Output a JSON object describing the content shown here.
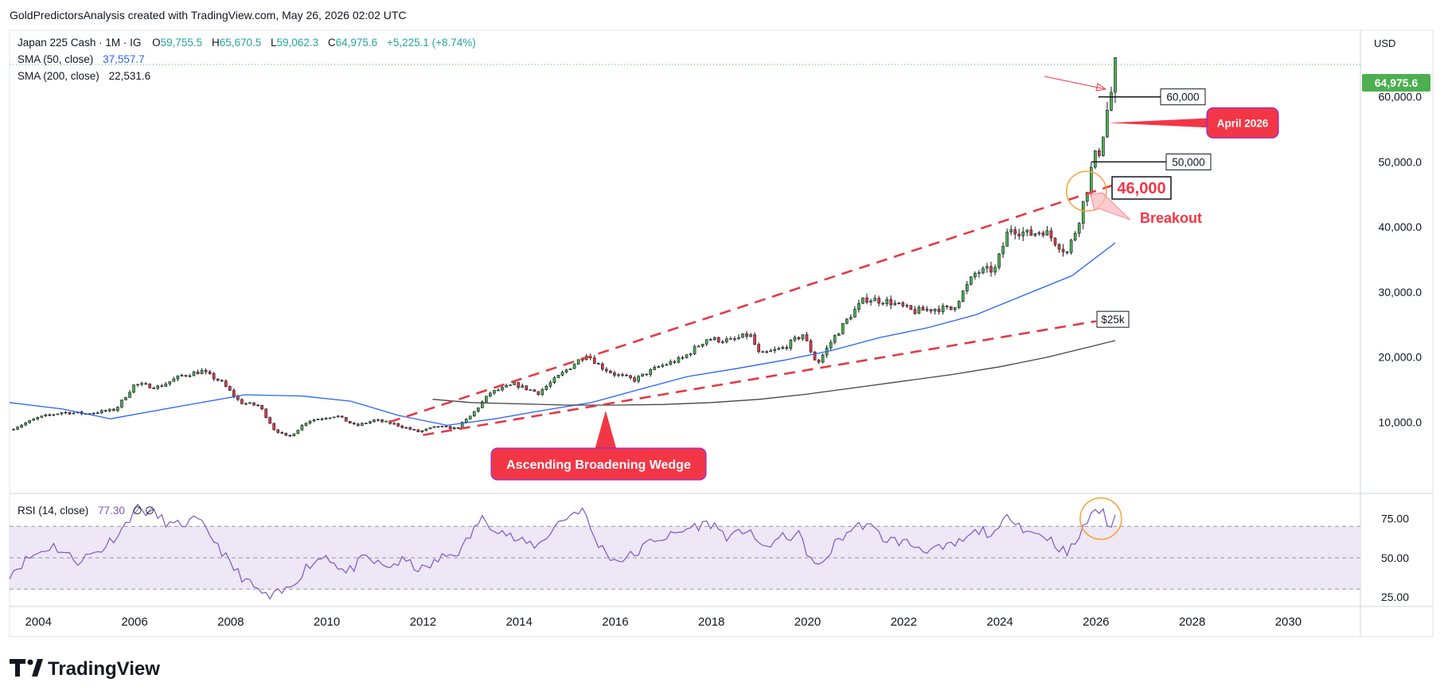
{
  "header": {
    "attribution": "GoldPredictorsAnalysis created with TradingView.com, May 26, 2026 02:02 UTC"
  },
  "legend": {
    "symbol": "Japan 225 Cash · 1M · IG",
    "open_label": "O",
    "open": "59,755.5",
    "high_label": "H",
    "high": "65,670.5",
    "low_label": "L",
    "low": "59,062.3",
    "close_label": "C",
    "close": "64,975.6",
    "change": "+5,225.1 (+8.74%)",
    "sma50_label": "SMA (50, close)",
    "sma50_value": "37,557.7",
    "sma200_label": "SMA (200, close)",
    "sma200_value": "22,531.6",
    "rsi_label": "RSI (14, close)",
    "rsi_value": "77.30",
    "rsi_extra": "∅ ∅"
  },
  "currency": "USD",
  "price_tag": "64,975.6",
  "annotations": {
    "level_60k": "60,000",
    "april": "April 2026",
    "level_50k": "50,000",
    "level_46k": "46,000",
    "breakout": "Breakout",
    "level_25k": "$25k",
    "pattern": "Ascending Broadening Wedge"
  },
  "branding": {
    "logo_text": "TradingView"
  },
  "colors": {
    "bull": "#26a69a",
    "bull_fill": "#4caf50",
    "bear": "#e53945",
    "sma50": "#2962ff",
    "sma200": "#444444",
    "rsi": "#7e57c2",
    "rsi_band": "#ede7f6",
    "wedge": "#e53945",
    "badge": "#f23645",
    "price_tag": "#4caf50",
    "circle": "#f7a134"
  },
  "chart_data": {
    "type": "candlestick",
    "timeframe": "1M",
    "ylim": [
      0,
      70000
    ],
    "yticks": [
      10000,
      20000,
      30000,
      40000,
      50000,
      60000
    ],
    "ytick_labels": [
      "10,000.0",
      "20,000.0",
      "30,000.0",
      "40,000.0",
      "50,000.0",
      "60,000.0"
    ],
    "xlim": [
      2003.4,
      2031.5
    ],
    "xticks": [
      2004,
      2006,
      2008,
      2010,
      2012,
      2014,
      2016,
      2018,
      2020,
      2022,
      2024,
      2026,
      2028,
      2030
    ],
    "price_anchors": [
      [
        2003.4,
        8800
      ],
      [
        2004.0,
        10700
      ],
      [
        2004.5,
        11500
      ],
      [
        2005.0,
        11300
      ],
      [
        2005.6,
        11900
      ],
      [
        2006.0,
        15800
      ],
      [
        2006.5,
        15400
      ],
      [
        2007.0,
        17200
      ],
      [
        2007.4,
        17800
      ],
      [
        2007.8,
        16200
      ],
      [
        2008.2,
        13000
      ],
      [
        2008.6,
        12500
      ],
      [
        2008.9,
        8900
      ],
      [
        2009.2,
        7600
      ],
      [
        2009.6,
        10200
      ],
      [
        2010.2,
        11000
      ],
      [
        2010.6,
        9400
      ],
      [
        2011.0,
        10300
      ],
      [
        2011.4,
        9700
      ],
      [
        2011.9,
        8500
      ],
      [
        2012.3,
        9300
      ],
      [
        2012.7,
        9000
      ],
      [
        2013.0,
        11000
      ],
      [
        2013.4,
        14500
      ],
      [
        2013.9,
        15800
      ],
      [
        2014.4,
        14500
      ],
      [
        2014.9,
        17500
      ],
      [
        2015.4,
        20500
      ],
      [
        2015.7,
        18500
      ],
      [
        2016.0,
        17300
      ],
      [
        2016.4,
        16500
      ],
      [
        2016.9,
        18500
      ],
      [
        2017.4,
        19800
      ],
      [
        2017.9,
        22800
      ],
      [
        2018.4,
        22500
      ],
      [
        2018.8,
        23500
      ],
      [
        2019.0,
        20300
      ],
      [
        2019.5,
        21400
      ],
      [
        2019.9,
        23500
      ],
      [
        2020.2,
        18900
      ],
      [
        2020.5,
        22500
      ],
      [
        2020.9,
        26500
      ],
      [
        2021.2,
        29000
      ],
      [
        2021.7,
        28500
      ],
      [
        2022.2,
        27000
      ],
      [
        2022.7,
        27500
      ],
      [
        2023.0,
        27300
      ],
      [
        2023.5,
        33000
      ],
      [
        2023.9,
        33500
      ],
      [
        2024.2,
        40000
      ],
      [
        2024.6,
        38800
      ],
      [
        2024.9,
        39500
      ],
      [
        2025.2,
        37500
      ],
      [
        2025.4,
        36000
      ],
      [
        2025.6,
        40000
      ],
      [
        2025.8,
        45500
      ],
      [
        2025.95,
        50500
      ],
      [
        2026.1,
        52000
      ],
      [
        2026.2,
        57000
      ],
      [
        2026.3,
        59800
      ],
      [
        2026.4,
        64975.6
      ]
    ],
    "sma50": [
      [
        2003.4,
        13000
      ],
      [
        2004.5,
        12000
      ],
      [
        2005.5,
        10500
      ],
      [
        2007.0,
        12500
      ],
      [
        2008.3,
        14200
      ],
      [
        2009.5,
        14000
      ],
      [
        2010.5,
        13200
      ],
      [
        2011.5,
        11000
      ],
      [
        2012.5,
        9500
      ],
      [
        2013.5,
        10500
      ],
      [
        2014.5,
        11800
      ],
      [
        2015.5,
        13000
      ],
      [
        2016.5,
        15000
      ],
      [
        2017.5,
        17000
      ],
      [
        2018.5,
        18200
      ],
      [
        2019.5,
        19500
      ],
      [
        2020.5,
        21000
      ],
      [
        2021.5,
        23000
      ],
      [
        2022.5,
        24500
      ],
      [
        2023.5,
        26500
      ],
      [
        2024.5,
        29500
      ],
      [
        2025.5,
        32500
      ],
      [
        2026.4,
        37557.7
      ]
    ],
    "sma200": [
      [
        2012.2,
        13500
      ],
      [
        2013.0,
        13000
      ],
      [
        2014.0,
        12800
      ],
      [
        2015.0,
        12600
      ],
      [
        2016.0,
        12600
      ],
      [
        2017.0,
        12700
      ],
      [
        2018.0,
        13000
      ],
      [
        2019.0,
        13500
      ],
      [
        2020.0,
        14300
      ],
      [
        2021.0,
        15300
      ],
      [
        2022.0,
        16300
      ],
      [
        2023.0,
        17300
      ],
      [
        2024.0,
        18500
      ],
      [
        2025.0,
        20000
      ],
      [
        2026.4,
        22531.6
      ]
    ],
    "wedge_upper": [
      [
        2011.3,
        10000
      ],
      [
        2026.8,
        47500
      ]
    ],
    "wedge_lower": [
      [
        2012.0,
        8000
      ],
      [
        2026.0,
        25500
      ]
    ],
    "levels": [
      60000,
      50000
    ],
    "rsi": {
      "ylim": [
        20,
        90
      ],
      "overbought": 70,
      "mid": 50,
      "oversold": 30,
      "yticks": [
        25,
        50,
        75
      ],
      "ytick_labels": [
        "25.00",
        "50.00",
        "75.00"
      ],
      "values": [
        [
          2003.4,
          40
        ],
        [
          2003.8,
          50
        ],
        [
          2004.3,
          58
        ],
        [
          2004.8,
          48
        ],
        [
          2005.3,
          55
        ],
        [
          2005.8,
          70
        ],
        [
          2006.0,
          82
        ],
        [
          2006.4,
          78
        ],
        [
          2006.8,
          70
        ],
        [
          2007.3,
          74
        ],
        [
          2007.7,
          60
        ],
        [
          2008.0,
          45
        ],
        [
          2008.4,
          33
        ],
        [
          2008.8,
          24
        ],
        [
          2009.2,
          30
        ],
        [
          2009.6,
          45
        ],
        [
          2010.0,
          52
        ],
        [
          2010.4,
          40
        ],
        [
          2010.8,
          50
        ],
        [
          2011.2,
          44
        ],
        [
          2011.6,
          48
        ],
        [
          2012.0,
          42
        ],
        [
          2012.4,
          50
        ],
        [
          2012.8,
          55
        ],
        [
          2013.2,
          75
        ],
        [
          2013.6,
          68
        ],
        [
          2014.0,
          60
        ],
        [
          2014.4,
          58
        ],
        [
          2014.8,
          72
        ],
        [
          2015.3,
          82
        ],
        [
          2015.6,
          60
        ],
        [
          2016.0,
          48
        ],
        [
          2016.4,
          52
        ],
        [
          2016.8,
          62
        ],
        [
          2017.2,
          64
        ],
        [
          2017.6,
          70
        ],
        [
          2018.0,
          72
        ],
        [
          2018.4,
          62
        ],
        [
          2018.8,
          70
        ],
        [
          2019.0,
          55
        ],
        [
          2019.4,
          62
        ],
        [
          2019.8,
          65
        ],
        [
          2020.2,
          42
        ],
        [
          2020.6,
          60
        ],
        [
          2020.9,
          68
        ],
        [
          2021.2,
          72
        ],
        [
          2021.6,
          62
        ],
        [
          2022.0,
          60
        ],
        [
          2022.4,
          56
        ],
        [
          2022.8,
          55
        ],
        [
          2023.2,
          60
        ],
        [
          2023.6,
          68
        ],
        [
          2023.9,
          64
        ],
        [
          2024.2,
          78
        ],
        [
          2024.6,
          66
        ],
        [
          2024.9,
          65
        ],
        [
          2025.2,
          58
        ],
        [
          2025.4,
          52
        ],
        [
          2025.7,
          66
        ],
        [
          2025.95,
          82
        ],
        [
          2026.15,
          78
        ],
        [
          2026.25,
          68
        ],
        [
          2026.4,
          77.3
        ]
      ]
    }
  }
}
